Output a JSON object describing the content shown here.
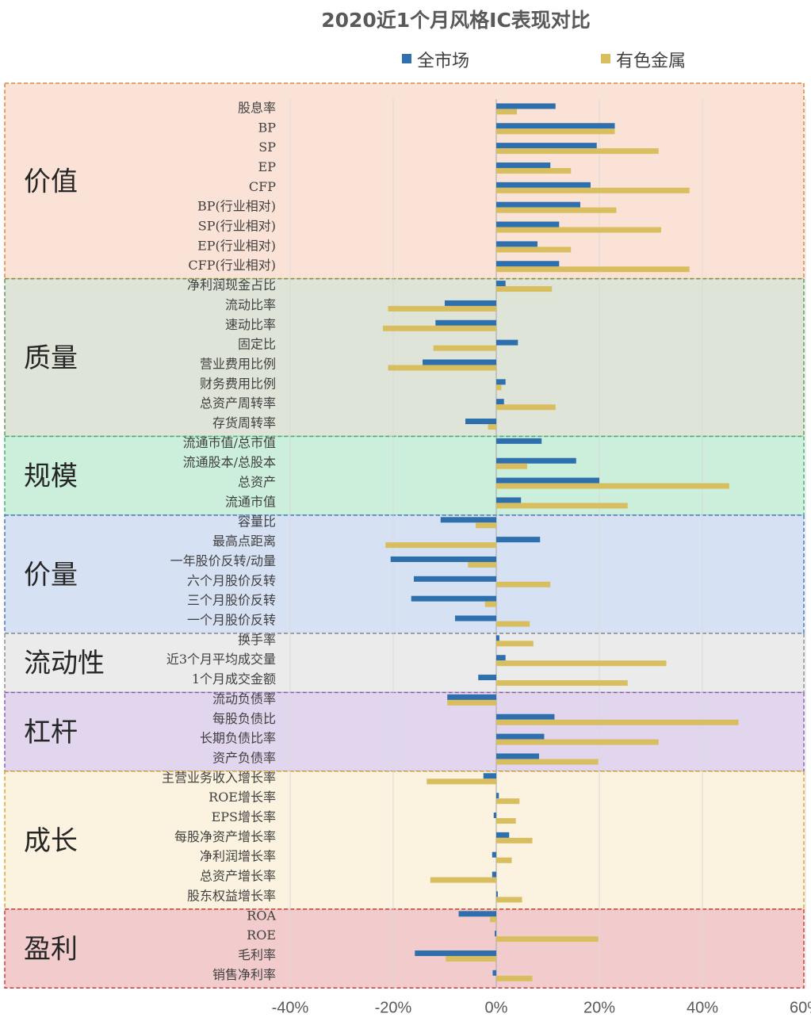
{
  "chart_data": {
    "type": "bar",
    "orientation": "horizontal",
    "title": "2020近1个月风格IC表现对比",
    "series": [
      {
        "name": "全市场",
        "color": "#2E6FAE"
      },
      {
        "name": "有色金属",
        "color": "#D9BE60"
      }
    ],
    "xlim": [
      -0.6,
      0.6
    ],
    "xticks": [
      {
        "value": -0.4,
        "label": "-40%"
      },
      {
        "value": -0.2,
        "label": "-20%"
      },
      {
        "value": 0,
        "label": "0%"
      },
      {
        "value": 0.2,
        "label": "20%"
      },
      {
        "value": 0.4,
        "label": "40%"
      },
      {
        "value": 0.6,
        "label": "60%"
      }
    ],
    "legend_position": "top",
    "grid": true,
    "groups": [
      {
        "name": "价值",
        "fill": "#FBE2D6",
        "border": "#E8833A",
        "items": [
          {
            "label": "股息率",
            "v1": 0.115,
            "v2": 0.04
          },
          {
            "label": "BP",
            "v1": 0.23,
            "v2": 0.23
          },
          {
            "label": "SP",
            "v1": 0.195,
            "v2": 0.315
          },
          {
            "label": "EP",
            "v1": 0.105,
            "v2": 0.145
          },
          {
            "label": "CFP",
            "v1": 0.183,
            "v2": 0.375
          },
          {
            "label": "BP(行业相对)",
            "v1": 0.163,
            "v2": 0.233
          },
          {
            "label": "SP(行业相对)",
            "v1": 0.122,
            "v2": 0.32
          },
          {
            "label": "EP(行业相对)",
            "v1": 0.08,
            "v2": 0.145
          },
          {
            "label": "CFP(行业相对)",
            "v1": 0.122,
            "v2": 0.375
          }
        ]
      },
      {
        "name": "质量",
        "fill": "#DFE4D8",
        "border": "#5E9B4A",
        "items": [
          {
            "label": "净利润现金占比",
            "v1": 0.018,
            "v2": 0.108
          },
          {
            "label": "流动比率",
            "v1": -0.1,
            "v2": -0.21
          },
          {
            "label": "速动比率",
            "v1": -0.118,
            "v2": -0.22
          },
          {
            "label": "固定比",
            "v1": 0.042,
            "v2": -0.122
          },
          {
            "label": "营业费用比例",
            "v1": -0.143,
            "v2": -0.21
          },
          {
            "label": "财务费用比例",
            "v1": 0.018,
            "v2": 0.01
          },
          {
            "label": "总资产周转率",
            "v1": 0.015,
            "v2": 0.115
          },
          {
            "label": "存货周转率",
            "v1": -0.06,
            "v2": -0.016
          }
        ]
      },
      {
        "name": "规模",
        "fill": "#CBEFDB",
        "border": "#3FB079",
        "items": [
          {
            "label": "流通市值/总市值",
            "v1": 0.088,
            "v2": 0.0
          },
          {
            "label": "流通股本/总股本",
            "v1": 0.155,
            "v2": 0.06
          },
          {
            "label": "总资产",
            "v1": 0.2,
            "v2": 0.452
          },
          {
            "label": "流通市值",
            "v1": 0.048,
            "v2": 0.255
          }
        ]
      },
      {
        "name": "价量",
        "fill": "#D6E1F3",
        "border": "#4A78C8",
        "items": [
          {
            "label": "容量比",
            "v1": -0.108,
            "v2": -0.04
          },
          {
            "label": "最高点距离",
            "v1": 0.085,
            "v2": -0.215
          },
          {
            "label": "一年股价反转/动量",
            "v1": -0.205,
            "v2": -0.055
          },
          {
            "label": "六个月股价反转",
            "v1": -0.16,
            "v2": 0.105
          },
          {
            "label": "三个月股价反转",
            "v1": -0.165,
            "v2": -0.022
          },
          {
            "label": "一个月股价反转",
            "v1": -0.08,
            "v2": 0.065
          }
        ]
      },
      {
        "name": "流动性",
        "fill": "#EBEBEB",
        "border": "#8F8F8F",
        "items": [
          {
            "label": "换手率",
            "v1": 0.006,
            "v2": 0.072
          },
          {
            "label": "近3个月平均成交量",
            "v1": 0.018,
            "v2": 0.33
          },
          {
            "label": "1个月成交金额",
            "v1": -0.035,
            "v2": 0.255
          }
        ]
      },
      {
        "name": "杠杆",
        "fill": "#E2D6EE",
        "border": "#8B5DB8",
        "items": [
          {
            "label": "流动负债率",
            "v1": -0.095,
            "v2": -0.095
          },
          {
            "label": "每股负债比",
            "v1": 0.113,
            "v2": 0.47
          },
          {
            "label": "长期负债比率",
            "v1": 0.093,
            "v2": 0.315
          },
          {
            "label": "资产负债率",
            "v1": 0.083,
            "v2": 0.198
          }
        ]
      },
      {
        "name": "成长",
        "fill": "#FBF3DF",
        "border": "#DBA52C",
        "items": [
          {
            "label": "主营业务收入增长率",
            "v1": -0.025,
            "v2": -0.135
          },
          {
            "label": "ROE增长率",
            "v1": 0.005,
            "v2": 0.045
          },
          {
            "label": "EPS增长率",
            "v1": -0.005,
            "v2": 0.038
          },
          {
            "label": "每股净资产增长率",
            "v1": 0.025,
            "v2": 0.07
          },
          {
            "label": "净利润增长率",
            "v1": -0.008,
            "v2": 0.03
          },
          {
            "label": "总资产增长率",
            "v1": -0.008,
            "v2": -0.128
          },
          {
            "label": "股东权益增长率",
            "v1": 0.003,
            "v2": 0.05
          }
        ]
      },
      {
        "name": "盈利",
        "fill": "#F2CCCC",
        "border": "#D43A3A",
        "items": [
          {
            "label": "ROA",
            "v1": -0.073,
            "v2": -0.012
          },
          {
            "label": "ROE",
            "v1": -0.003,
            "v2": 0.198
          },
          {
            "label": "毛利率",
            "v1": -0.158,
            "v2": -0.098
          },
          {
            "label": "销售净利率",
            "v1": -0.007,
            "v2": 0.07
          }
        ]
      }
    ]
  }
}
